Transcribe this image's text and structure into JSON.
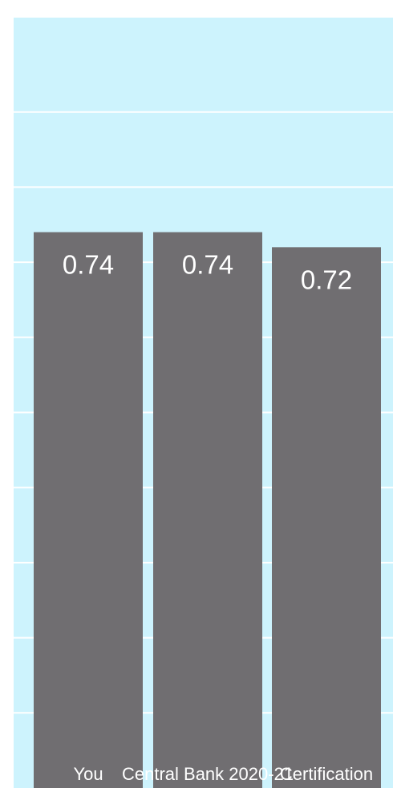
{
  "chart_data": {
    "type": "bar",
    "categories": [
      "You",
      "Central Bank 2020-21",
      "Certification"
    ],
    "values": [
      0.74,
      0.74,
      0.72
    ],
    "data_labels": [
      "0.74",
      "0.74",
      "0.72"
    ],
    "title": "",
    "xlabel": "",
    "ylabel": "",
    "ylim": [
      0,
      1
    ],
    "grid": true,
    "legend": "none"
  },
  "colors": {
    "plot_background": "#cdf3fd",
    "bar": "#706e71",
    "gridline": "#ffffff",
    "label_text": "#ffffff"
  }
}
